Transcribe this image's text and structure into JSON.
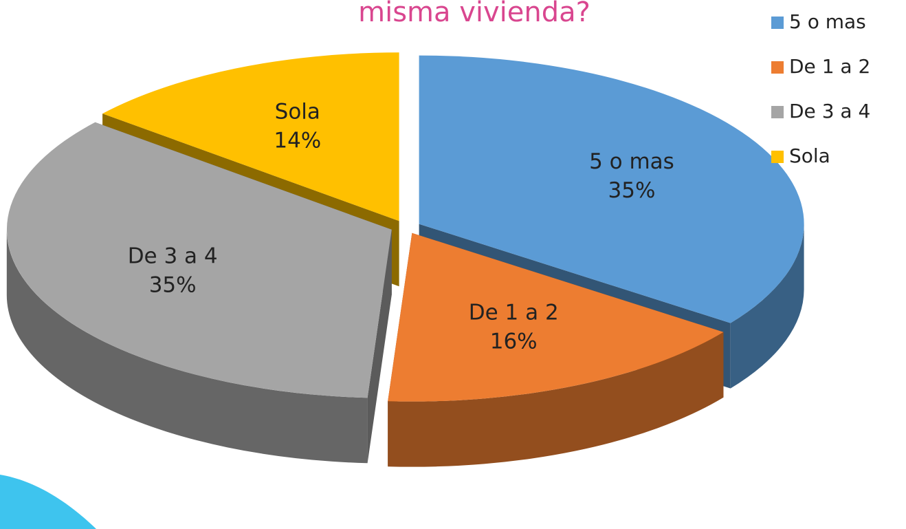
{
  "chart_data": {
    "type": "pie",
    "title": "misma vivienda?",
    "categories": [
      "5 o mas",
      "De 1 a 2",
      "De 3 a 4",
      "Sola"
    ],
    "values": [
      35,
      16,
      35,
      14
    ],
    "value_labels": [
      "35%",
      "16%",
      "35%",
      "14%"
    ],
    "colors": [
      "#5b9bd5",
      "#ed7d31",
      "#a5a5a5",
      "#ffc000"
    ],
    "legend": "right"
  }
}
